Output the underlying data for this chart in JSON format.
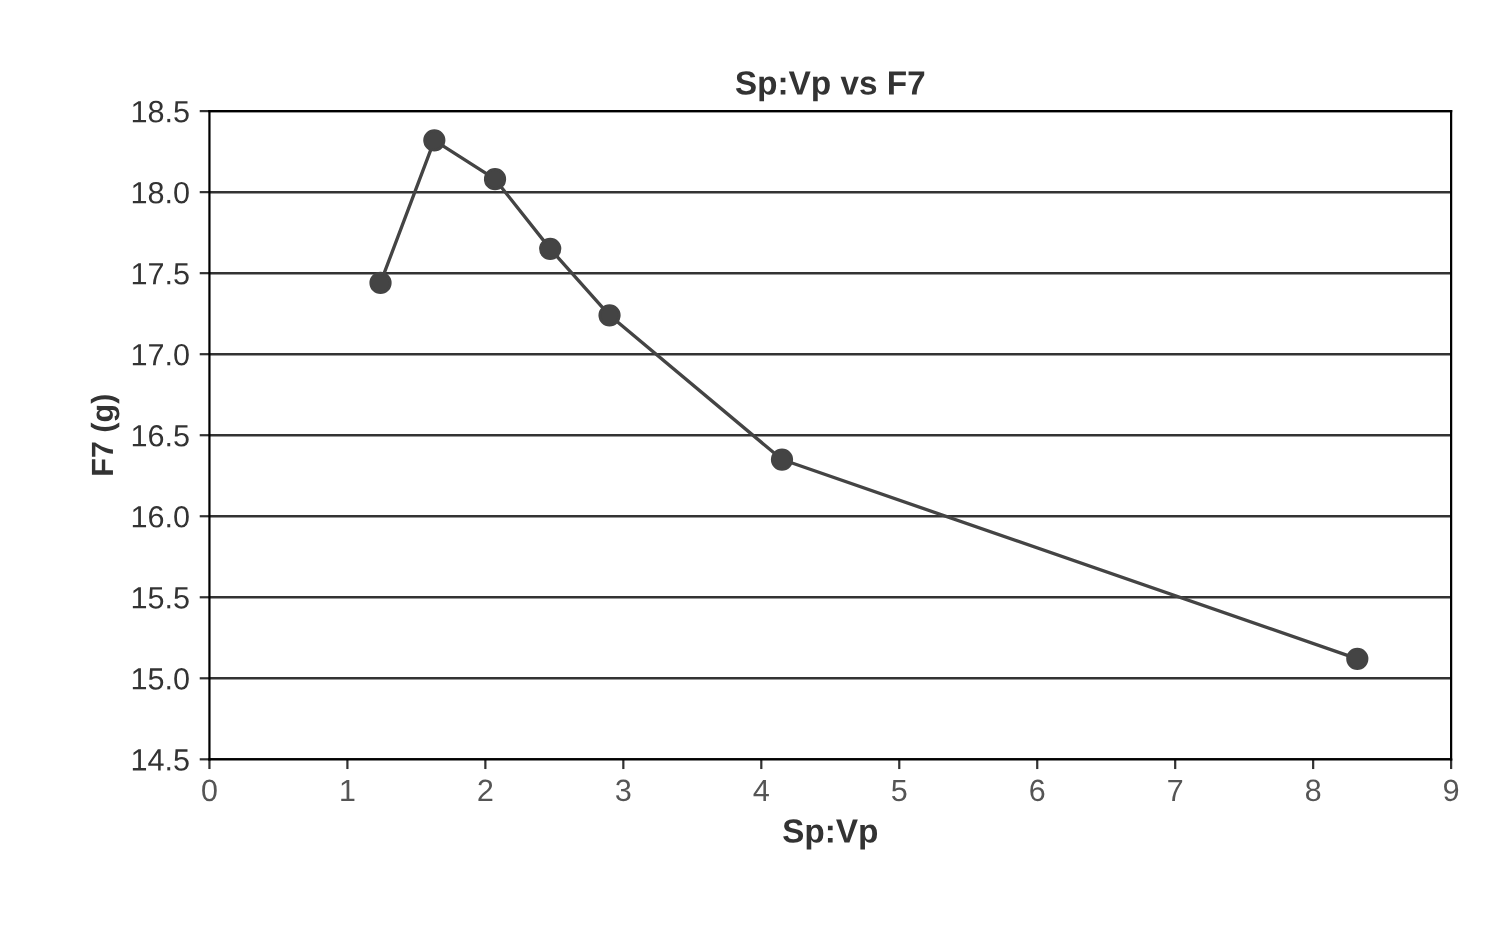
{
  "chart_data": {
    "type": "line",
    "title": "Sp:Vp vs F7",
    "xlabel": "Sp:Vp",
    "ylabel": "F7 (g)",
    "x": [
      1.24,
      1.63,
      2.07,
      2.47,
      2.9,
      4.15,
      8.32
    ],
    "series": [
      {
        "color": "#444444",
        "values": [
          17.44,
          18.32,
          18.08,
          17.65,
          17.24,
          16.35,
          15.12
        ]
      }
    ],
    "xlim": [
      0,
      9
    ],
    "xticks": [
      0,
      1,
      2,
      3,
      4,
      5,
      6,
      7,
      8,
      9
    ],
    "ylim": [
      14.5,
      18.5
    ],
    "yticks": [
      {
        "value": 14.5,
        "label": "14.5"
      },
      {
        "value": 15.0,
        "label": "15.0"
      },
      {
        "value": 15.5,
        "label": "15.5"
      },
      {
        "value": 16.0,
        "label": "16.0"
      },
      {
        "value": 16.5,
        "label": "16.5"
      },
      {
        "value": 17.0,
        "label": "17.0"
      },
      {
        "value": 17.5,
        "label": "17.5"
      },
      {
        "value": 18.0,
        "label": "18.0"
      },
      {
        "value": 18.5,
        "label": "18.5"
      }
    ],
    "grid": "y",
    "marker": "circle",
    "line_style": "solid"
  }
}
